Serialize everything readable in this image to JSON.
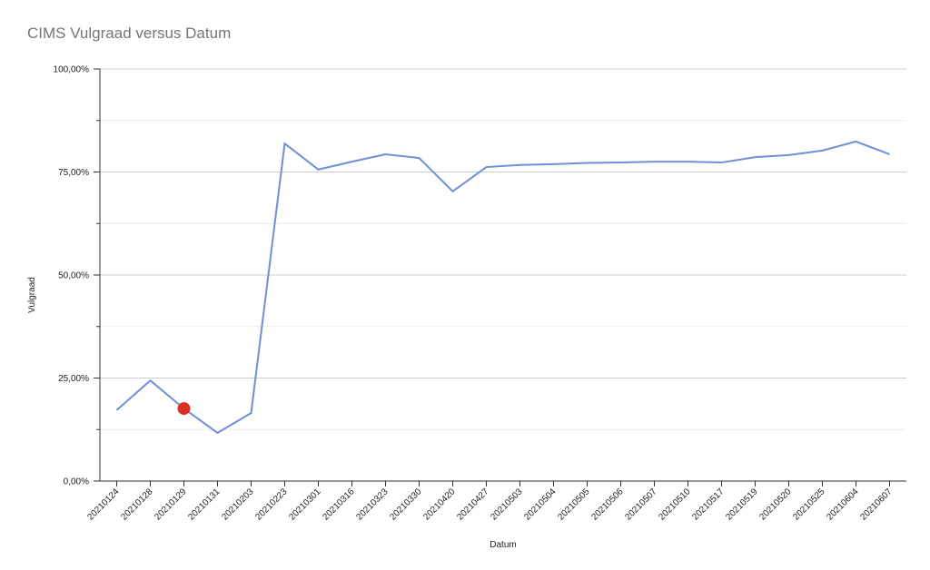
{
  "chart_data": {
    "type": "line",
    "title": "CIMS Vulgraad versus Datum",
    "x_label": "Datum",
    "y_label": "Vulgraad",
    "categories": [
      "20210124",
      "20210128",
      "20210129",
      "20210131",
      "20210203",
      "20210223",
      "20210301",
      "20210316",
      "20210323",
      "20210330",
      "20210420",
      "20210427",
      "20210503",
      "20210504",
      "20210505",
      "20210506",
      "20210507",
      "20210510",
      "20210517",
      "20210519",
      "20210520",
      "20210525",
      "20210604",
      "20210607"
    ],
    "series": [
      {
        "name": "Vulgraad",
        "color": "#6d8fd8",
        "values": [
          17.2,
          24.4,
          17.6,
          11.7,
          16.5,
          81.9,
          75.6,
          77.5,
          79.3,
          78.4,
          70.3,
          76.2,
          76.7,
          76.9,
          77.2,
          77.3,
          77.5,
          77.5,
          77.3,
          78.6,
          79.1,
          80.2,
          82.4,
          79.3
        ]
      }
    ],
    "highlight_index": 2,
    "highlight_color": "#d93025",
    "ylim": [
      0,
      100
    ],
    "yticks": [
      {
        "value": 0,
        "label": "0,00%"
      },
      {
        "value": 25,
        "label": "25,00%"
      },
      {
        "value": 50,
        "label": "50,00%"
      },
      {
        "value": 75,
        "label": "75,00%"
      },
      {
        "value": 100,
        "label": "100,00%"
      }
    ],
    "minor_yticks": [
      12.5,
      37.5,
      62.5,
      87.5
    ],
    "grid": true
  }
}
